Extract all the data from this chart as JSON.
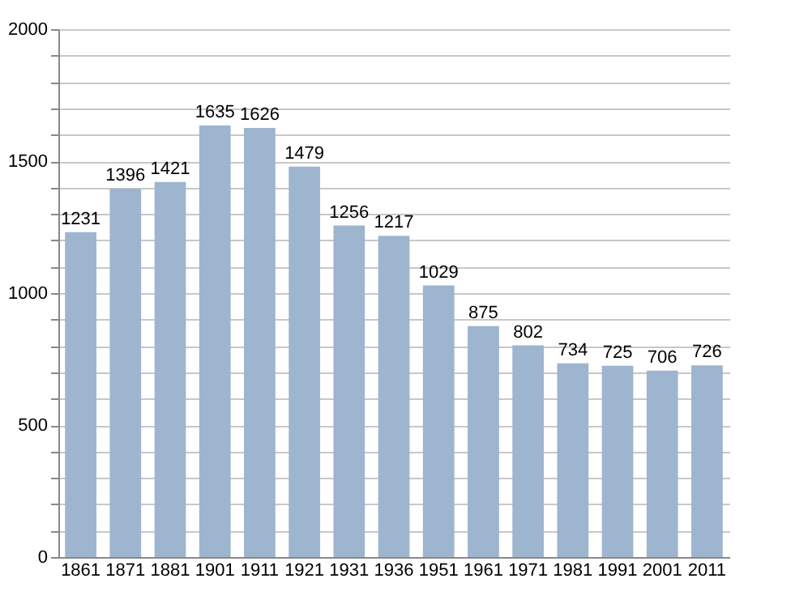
{
  "chart_data": {
    "type": "bar",
    "categories": [
      "1861",
      "1871",
      "1881",
      "1901",
      "1911",
      "1921",
      "1931",
      "1936",
      "1951",
      "1961",
      "1971",
      "1981",
      "1991",
      "2001",
      "2011"
    ],
    "values": [
      1231,
      1396,
      1421,
      1635,
      1626,
      1479,
      1256,
      1217,
      1029,
      875,
      802,
      734,
      725,
      706,
      726
    ],
    "color": "#9db5cf",
    "data_labels": true,
    "grid": "y",
    "ylim": [
      0,
      2000
    ],
    "yticks": [
      0,
      {
        "value": 100,
        "label": null
      },
      {
        "value": 200,
        "label": null
      },
      {
        "value": 300,
        "label": null
      },
      {
        "value": 400,
        "label": null
      },
      500,
      {
        "value": 600,
        "label": null
      },
      {
        "value": 700,
        "label": null
      },
      {
        "value": 800,
        "label": null
      },
      {
        "value": 900,
        "label": null
      },
      1000,
      {
        "value": 1100,
        "label": null
      },
      {
        "value": 1200,
        "label": null
      },
      {
        "value": 1300,
        "label": null
      },
      {
        "value": 1400,
        "label": null
      },
      1500,
      {
        "value": 1600,
        "label": null
      },
      {
        "value": 1700,
        "label": null
      },
      {
        "value": 1800,
        "label": null
      },
      {
        "value": 1900,
        "label": null
      },
      2000
    ]
  }
}
